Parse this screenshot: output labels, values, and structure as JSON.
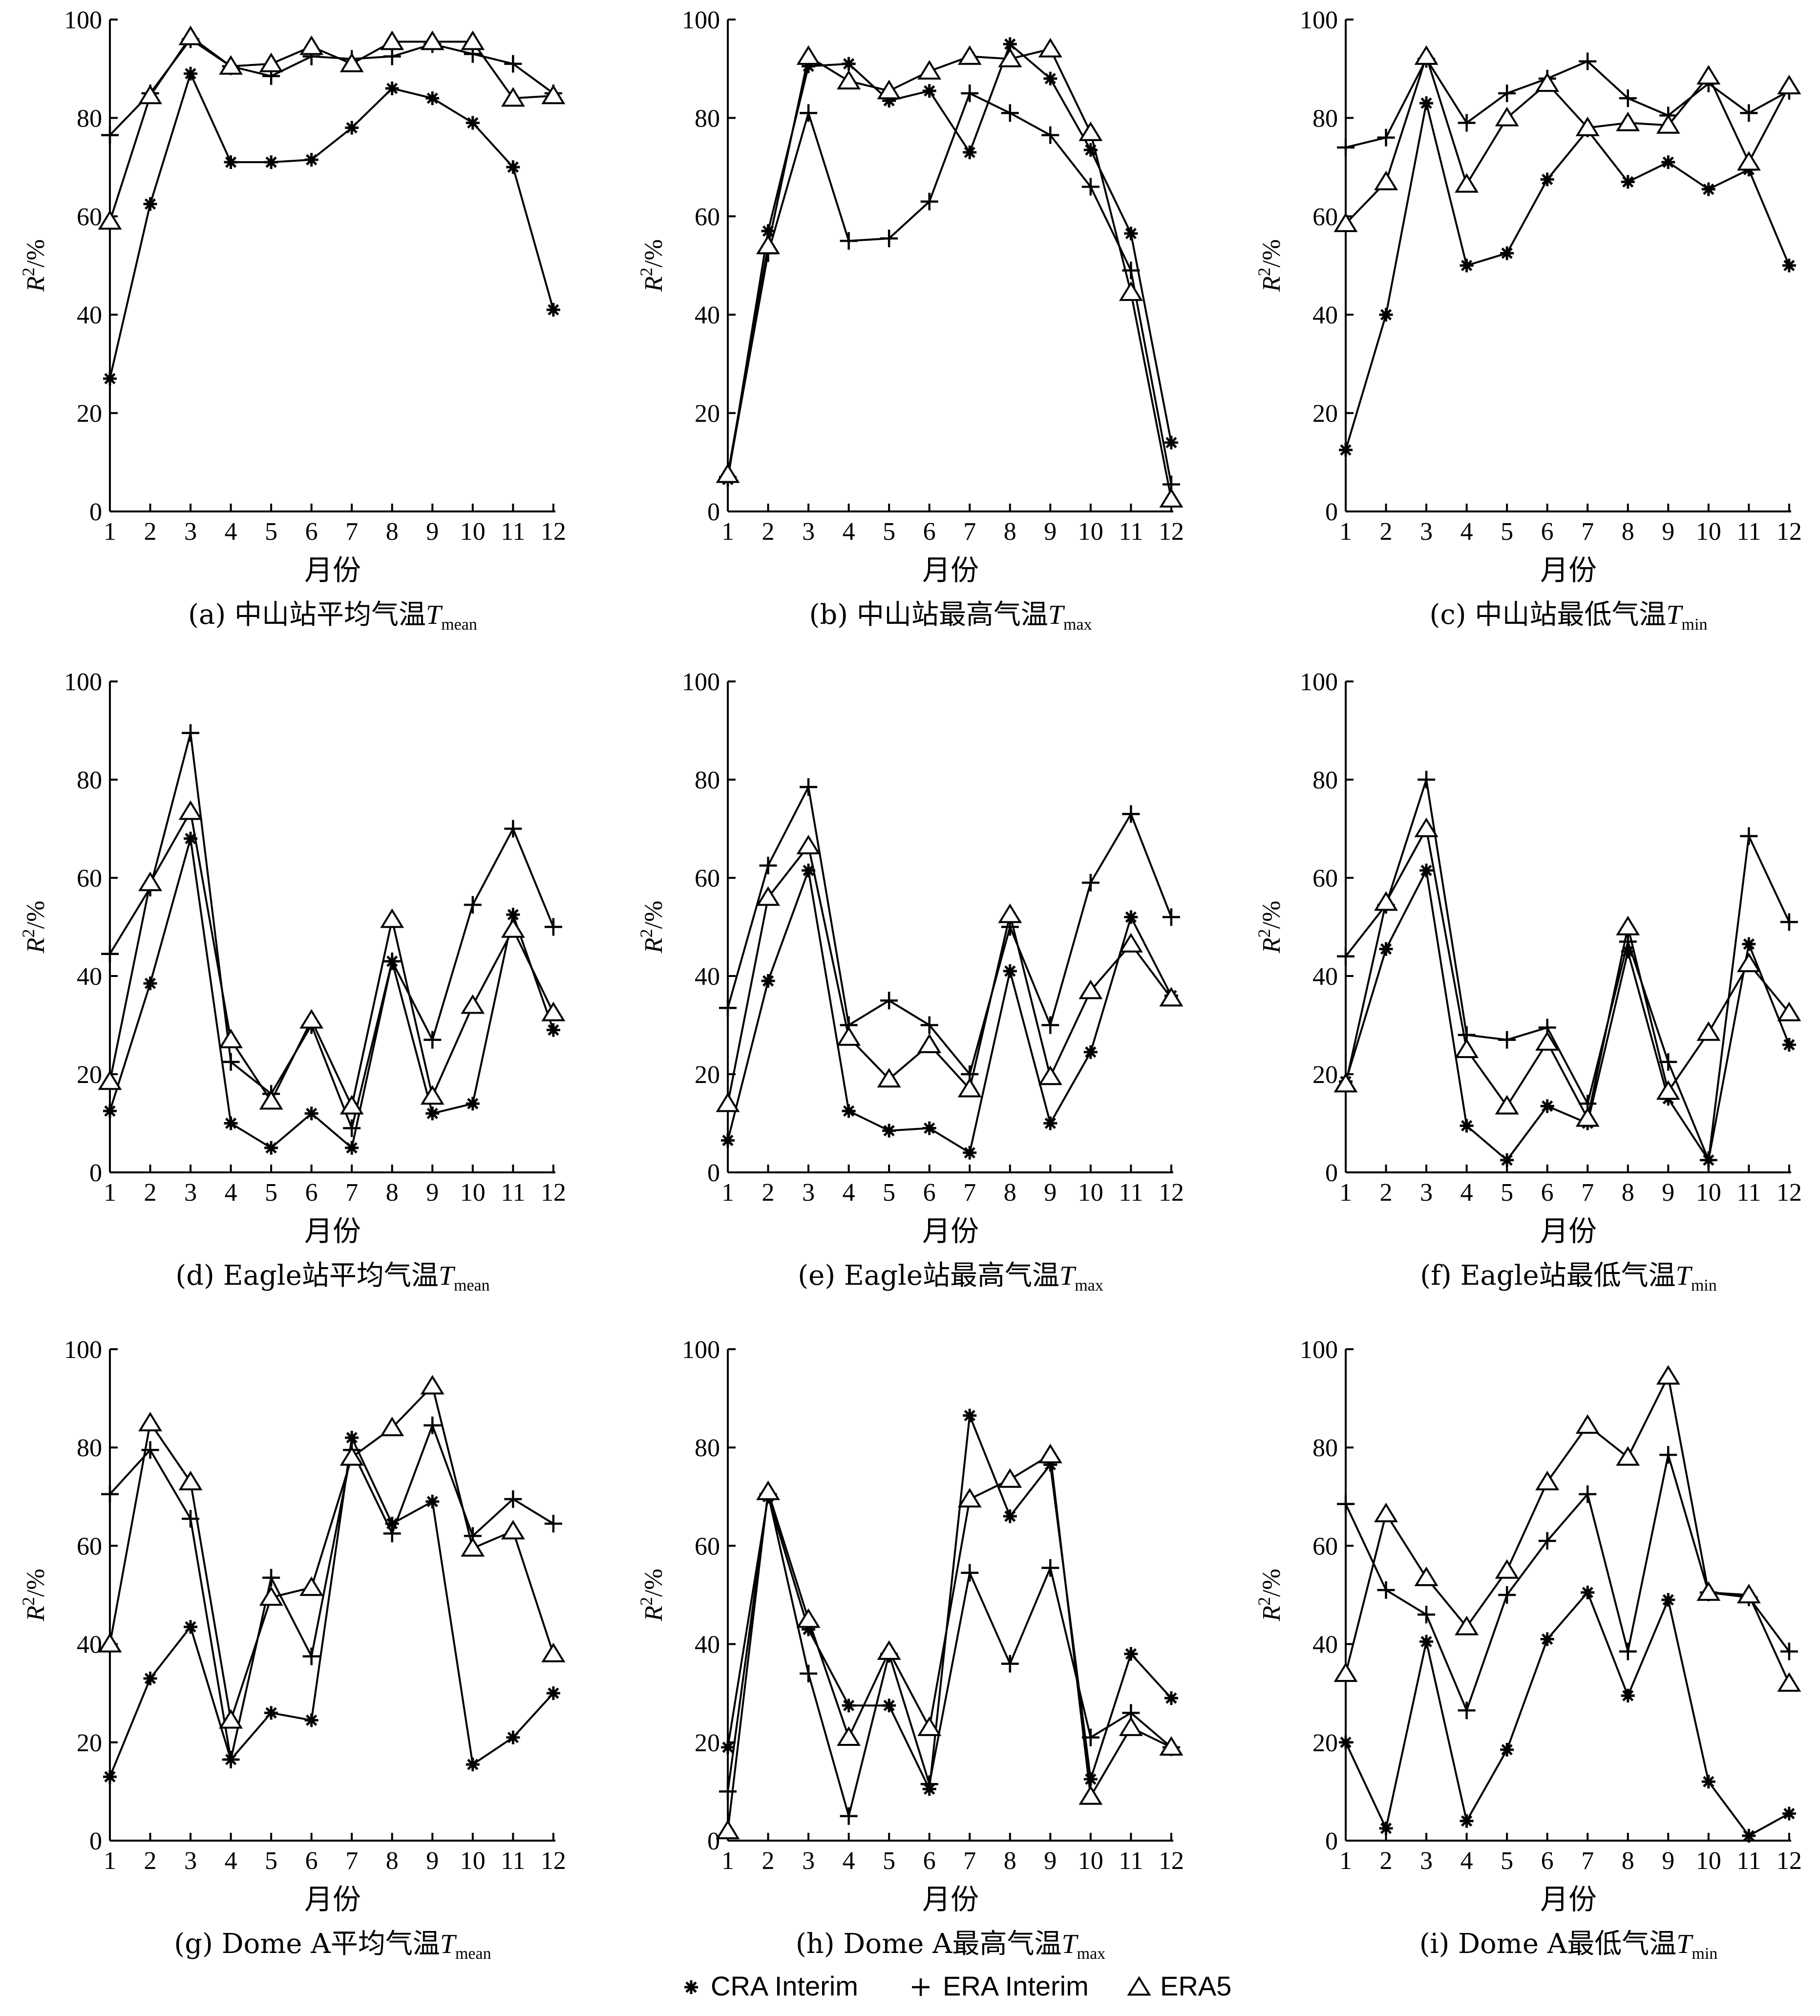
{
  "common": {
    "x": [
      1,
      2,
      3,
      4,
      5,
      6,
      7,
      8,
      9,
      10,
      11,
      12
    ],
    "xlabel": "月份",
    "ylabel_main": "R",
    "ylabel_sup": "2",
    "ylabel_unit": "/%",
    "yticks": [
      0,
      20,
      40,
      60,
      80,
      100
    ],
    "xticks": [
      "1",
      "2",
      "3",
      "4",
      "5",
      "6",
      "7",
      "8",
      "9",
      "10",
      "11",
      "12"
    ]
  },
  "legend": {
    "items": [
      {
        "key": "cra",
        "label": "CRA Interim",
        "marker": "asterisk-icon"
      },
      {
        "key": "era",
        "label": "ERA Interim",
        "marker": "plus-icon"
      },
      {
        "key": "era5",
        "label": "ERA5",
        "marker": "triangle-icon"
      }
    ]
  },
  "chart_data": [
    {
      "type": "line",
      "caption_prefix": "(a) 中山站平均气温",
      "var": "T",
      "sub": "mean",
      "ylim": [
        0,
        100
      ],
      "series": [
        {
          "name": "CRA Interim",
          "key": "cra",
          "values": [
            27,
            62.5,
            89,
            71,
            71,
            71.5,
            78,
            86,
            84,
            79,
            70,
            41
          ]
        },
        {
          "name": "ERA Interim",
          "key": "era",
          "values": [
            76.5,
            85,
            96,
            90.5,
            88.5,
            92.5,
            92,
            92.5,
            95,
            93,
            91,
            85
          ]
        },
        {
          "name": "ERA5",
          "key": "era5",
          "values": [
            59,
            84.5,
            96.5,
            90.5,
            91,
            94.5,
            91,
            95.5,
            95.5,
            95.5,
            84,
            84.5
          ]
        }
      ]
    },
    {
      "type": "line",
      "caption_prefix": "(b) 中山站最高气温",
      "var": "T",
      "sub": "max",
      "ylim": [
        0,
        100
      ],
      "series": [
        {
          "name": "CRA Interim",
          "key": "cra",
          "values": [
            6.5,
            57,
            90.5,
            91,
            83.5,
            85.5,
            73,
            95,
            88,
            73.5,
            56.5,
            14
          ]
        },
        {
          "name": "ERA Interim",
          "key": "era",
          "values": [
            7,
            52.5,
            81,
            55,
            55.5,
            63,
            85,
            81,
            76.5,
            66,
            49,
            5.5
          ]
        },
        {
          "name": "ERA5",
          "key": "era5",
          "values": [
            7.5,
            54,
            92.5,
            87.5,
            85.5,
            89.5,
            92.5,
            92,
            94,
            77,
            44.5,
            2.5
          ]
        }
      ]
    },
    {
      "type": "line",
      "caption_prefix": "(c) 中山站最低气温",
      "var": "T",
      "sub": "min",
      "ylim": [
        0,
        100
      ],
      "series": [
        {
          "name": "CRA Interim",
          "key": "cra",
          "values": [
            12.5,
            40,
            83,
            50,
            52.5,
            67.5,
            77.5,
            67,
            71,
            65.5,
            69.5,
            50
          ]
        },
        {
          "name": "ERA Interim",
          "key": "era",
          "values": [
            74,
            76,
            92,
            79,
            85,
            88,
            91.5,
            84,
            80.5,
            87,
            81,
            85.5
          ]
        },
        {
          "name": "ERA5",
          "key": "era5",
          "values": [
            58.5,
            67,
            92.5,
            66.5,
            80,
            87,
            78,
            79,
            78.5,
            88.5,
            71,
            86.5
          ]
        }
      ]
    },
    {
      "type": "line",
      "caption_prefix": "(d) Eagle站平均气温",
      "var": "T",
      "sub": "mean",
      "ylim": [
        0,
        100
      ],
      "series": [
        {
          "name": "CRA Interim",
          "key": "cra",
          "values": [
            12.5,
            38.5,
            68,
            10,
            5,
            12,
            5,
            43,
            12,
            14,
            52.5,
            29
          ]
        },
        {
          "name": "ERA Interim",
          "key": "era",
          "values": [
            44.5,
            58,
            89.5,
            22.5,
            16,
            30,
            9,
            43,
            27,
            54.5,
            70,
            50
          ]
        },
        {
          "name": "ERA5",
          "key": "era5",
          "values": [
            18.5,
            59,
            73.5,
            27,
            14.5,
            31,
            13.5,
            51.5,
            15.5,
            34,
            49.5,
            32.5
          ]
        }
      ]
    },
    {
      "type": "line",
      "caption_prefix": "(e) Eagle站最高气温",
      "var": "T",
      "sub": "max",
      "ylim": [
        0,
        100
      ],
      "series": [
        {
          "name": "CRA Interim",
          "key": "cra",
          "values": [
            6.5,
            39,
            61.5,
            12.5,
            8.5,
            9,
            4,
            41,
            10,
            24.5,
            52,
            36
          ]
        },
        {
          "name": "ERA Interim",
          "key": "era",
          "values": [
            33.5,
            62.5,
            78.5,
            30,
            35,
            30,
            20,
            50,
            30,
            59,
            73,
            52
          ]
        },
        {
          "name": "ERA5",
          "key": "era5",
          "values": [
            14,
            56,
            66.5,
            27.5,
            19,
            26,
            17,
            52.5,
            19.5,
            37,
            46.5,
            35.5
          ]
        }
      ]
    },
    {
      "type": "line",
      "caption_prefix": "(f) Eagle站最低气温",
      "var": "T",
      "sub": "min",
      "ylim": [
        0,
        100
      ],
      "series": [
        {
          "name": "CRA Interim",
          "key": "cra",
          "values": [
            18.5,
            45.5,
            61.5,
            9.5,
            2.5,
            13.5,
            10,
            45,
            15,
            2.5,
            46.5,
            26
          ]
        },
        {
          "name": "ERA Interim",
          "key": "era",
          "values": [
            44,
            54.5,
            80,
            28,
            27,
            29.5,
            14,
            47,
            22.5,
            2.5,
            68.5,
            51
          ]
        },
        {
          "name": "ERA5",
          "key": "era5",
          "values": [
            18,
            55,
            70,
            25,
            13.5,
            26.5,
            11,
            50,
            16.5,
            28.5,
            42.5,
            32.5
          ]
        }
      ]
    },
    {
      "type": "line",
      "caption_prefix": "(g) Dome A平均气温",
      "var": "T",
      "sub": "mean",
      "ylim": [
        0,
        100
      ],
      "series": [
        {
          "name": "CRA Interim",
          "key": "cra",
          "values": [
            13,
            33,
            43.5,
            16.5,
            26,
            24.5,
            82,
            64.5,
            69,
            15.5,
            21,
            30
          ]
        },
        {
          "name": "ERA Interim",
          "key": "era",
          "values": [
            70.5,
            79.5,
            65.5,
            16.5,
            53.5,
            37.5,
            79.5,
            62.5,
            84.5,
            62,
            69.5,
            64.5
          ]
        },
        {
          "name": "ERA5",
          "key": "era5",
          "values": [
            40,
            85,
            73,
            24.5,
            49.5,
            51.5,
            78,
            84,
            92.5,
            59.5,
            63,
            38
          ]
        }
      ]
    },
    {
      "type": "line",
      "caption_prefix": "(h) Dome A最高气温",
      "var": "T",
      "sub": "max",
      "ylim": [
        0,
        100
      ],
      "series": [
        {
          "name": "CRA Interim",
          "key": "cra",
          "values": [
            19,
            70,
            43,
            27.5,
            27.5,
            10.5,
            86.5,
            66,
            76.5,
            12.5,
            38,
            29
          ]
        },
        {
          "name": "ERA Interim",
          "key": "era",
          "values": [
            10,
            70.5,
            34,
            5,
            38,
            11.5,
            54.5,
            36,
            55.5,
            21,
            26,
            19
          ]
        },
        {
          "name": "ERA5",
          "key": "era5",
          "values": [
            2,
            71,
            45,
            21,
            38.5,
            23,
            69.5,
            73.5,
            78.5,
            9,
            23,
            19
          ]
        }
      ]
    },
    {
      "type": "line",
      "caption_prefix": "(i) Dome A最低气温",
      "var": "T",
      "sub": "min",
      "ylim": [
        0,
        100
      ],
      "series": [
        {
          "name": "CRA Interim",
          "key": "cra",
          "values": [
            20,
            2.5,
            40.5,
            4,
            18.5,
            41,
            50.5,
            29.5,
            49,
            12,
            1,
            5.5
          ]
        },
        {
          "name": "ERA Interim",
          "key": "era",
          "values": [
            68.5,
            51,
            46,
            26.5,
            50,
            61,
            70.5,
            38.5,
            78.5,
            50.5,
            49.5,
            38.5
          ]
        },
        {
          "name": "ERA5",
          "key": "era5",
          "values": [
            34,
            66.5,
            53.5,
            43.5,
            55,
            73,
            84.5,
            78,
            94.5,
            50.5,
            50,
            32
          ]
        }
      ]
    }
  ]
}
